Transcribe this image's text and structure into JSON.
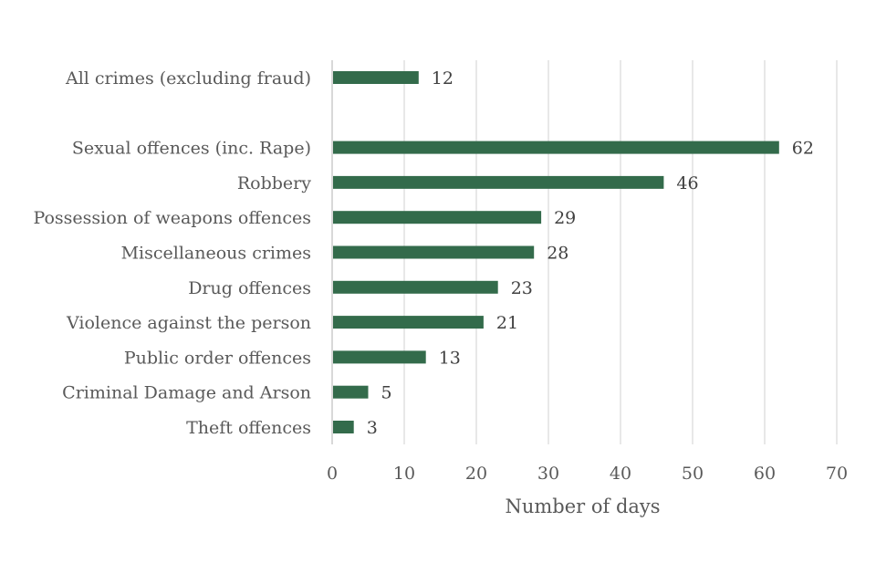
{
  "chart_data": {
    "type": "bar",
    "orientation": "horizontal",
    "categories": [
      "All crimes (excluding fraud)",
      "",
      "Sexual offences (inc. Rape)",
      "Robbery",
      "Possession of weapons offences",
      "Miscellaneous crimes",
      "Drug offences",
      "Violence against the person",
      "Public order offences",
      "Criminal Damage and Arson",
      "Theft offences"
    ],
    "values": [
      12,
      null,
      62,
      46,
      29,
      28,
      23,
      21,
      13,
      5,
      3
    ],
    "value_labels": [
      "12",
      "",
      "62",
      "46",
      "29",
      "28",
      "23",
      "21",
      "13",
      "5",
      "3"
    ],
    "title": "",
    "xlabel": "Number of days",
    "ylabel": "",
    "xlim": [
      0,
      70
    ],
    "xticks": [
      0,
      10,
      20,
      30,
      40,
      50,
      60,
      70
    ],
    "xtick_labels": [
      "0",
      "10",
      "20",
      "30",
      "40",
      "50",
      "60",
      "70"
    ],
    "grid": "vertical",
    "legend": "none",
    "colors": {
      "bar": "#336b4b",
      "grid": "#d9d9d9",
      "axis": "#bfbfbf"
    }
  }
}
